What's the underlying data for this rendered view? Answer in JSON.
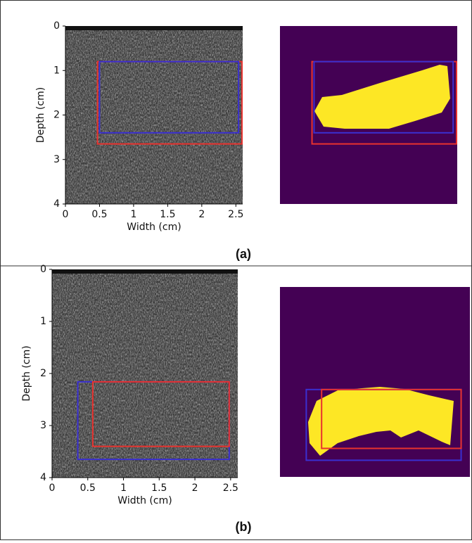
{
  "chart_data": [
    {
      "type": "image",
      "xlabel": "Width (cm)",
      "ylabel": "Depth (cm)",
      "caption": "(a)",
      "xlim": [
        0,
        2.6
      ],
      "ylim": [
        0,
        4
      ],
      "y_inverted": true,
      "xticks": [
        0,
        0.5,
        1,
        1.5,
        2,
        2.5
      ],
      "yticks": [
        0,
        1,
        2,
        3,
        4
      ],
      "boxes": [
        {
          "color": "#e8322e",
          "x": [
            0.47,
            2.59
          ],
          "y": [
            0.8,
            2.65
          ]
        },
        {
          "color": "#3a2fd0",
          "x": [
            0.5,
            2.54
          ],
          "y": [
            0.8,
            2.4
          ]
        }
      ]
    },
    {
      "type": "image",
      "xlabel": "Width (cm)",
      "ylabel": "Depth (cm)",
      "caption": "(b)",
      "xlim": [
        0,
        2.6
      ],
      "ylim": [
        0,
        4
      ],
      "y_inverted": true,
      "xticks": [
        0,
        0.5,
        1,
        1.5,
        2,
        2.5
      ],
      "yticks": [
        0,
        1,
        2,
        3,
        4
      ],
      "boxes": [
        {
          "color": "#3a2fd0",
          "x": [
            0.36,
            2.48
          ],
          "y": [
            2.16,
            3.65
          ]
        },
        {
          "color": "#e8322e",
          "x": [
            0.57,
            2.48
          ],
          "y": [
            2.16,
            3.4
          ]
        }
      ]
    }
  ]
}
